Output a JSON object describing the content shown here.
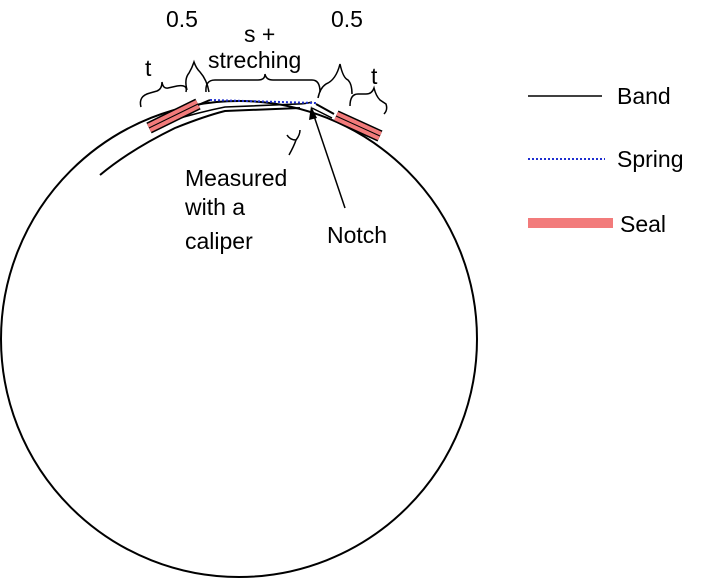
{
  "labels": {
    "t_left": "t",
    "half_left": "0.5",
    "s_line1": "s +",
    "s_line2": "streching",
    "half_right": "0.5",
    "t_right": "t",
    "measured_line1": "Measured",
    "measured_line2": "with a",
    "measured_line3": "caliper",
    "notch": "Notch"
  },
  "legend": {
    "items": [
      {
        "label": "Band",
        "style": "solid",
        "color": "#000000"
      },
      {
        "label": "Spring",
        "style": "dotted",
        "color": "#1f2fd0"
      },
      {
        "label": "Seal",
        "style": "thick",
        "color": "#f27b7b"
      }
    ]
  },
  "colors": {
    "band": "#000000",
    "spring": "#1f2fd0",
    "seal": "#f27b7b"
  }
}
